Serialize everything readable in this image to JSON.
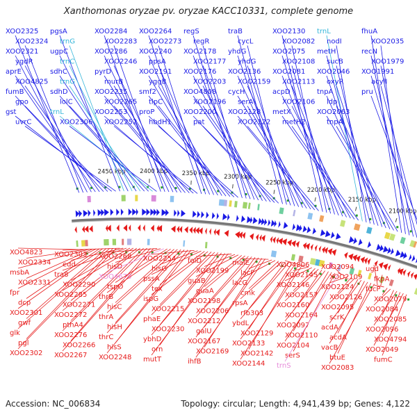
{
  "title": "Xanthomonas oryzae pv. oryzae KACC10331, complete genome",
  "accession_label": "Accession: NC_006834",
  "summary_label": "Topology: circular; Length: 4,941,439 bp; Genes: 4,122",
  "colors": {
    "forward": "#1a1ae6",
    "reverse": "#e61a1a",
    "rna": "#33b5d9",
    "rna_reverse": "#e68ad9",
    "backbone": "#777777"
  },
  "ticks": [
    "2100 kbp",
    "2150 kbp",
    "2200 kbp",
    "2250 kbp",
    "2300 kbp",
    "2350 kbp",
    "2400 kbp",
    "2450 kbp"
  ],
  "forward_labels": [
    "XOO2325",
    "XOO2324",
    "XOO2321",
    "ygdR",
    "aprE",
    "XOO4825",
    "fumB",
    "gpo",
    "gst",
    "uvrC",
    "pgsA",
    "trnG",
    "ugpC",
    "trnC",
    "sdhC",
    "trnG",
    "sdhD",
    "lolC",
    "trnL",
    "XOO2306",
    "XOO2284",
    "XOO2283",
    "XOO2286",
    "XOO2246",
    "pyrD",
    "murB",
    "XOO2235",
    "XOO2265",
    "XOO2253",
    "XOO2252",
    "XOO2264",
    "XOO2273",
    "XOO2240",
    "ppsA",
    "XOO2191",
    "yggB",
    "smf2",
    "tlpC",
    "proP",
    "hbdH1",
    "regS",
    "regR",
    "XOO2178",
    "XOO2177",
    "XOO2176",
    "XOO2203",
    "XOO4808",
    "XOO2196",
    "XOO2200",
    "pat",
    "traB",
    "cycL",
    "yhdG",
    "yhdG",
    "XOO2136",
    "XOO2159",
    "cycH",
    "serA",
    "XOO2128",
    "XOO2122",
    "XOO2130",
    "XOO2082",
    "XOO2075",
    "XOO2108",
    "XOO2081",
    "XOO2113",
    "acpD",
    "XOO2106",
    "metX",
    "metH2",
    "trnL",
    "nodI",
    "metH",
    "sucB",
    "XOO2046",
    "oxyR",
    "tnpA",
    "ldp",
    "XOO2063",
    "tnpA",
    "fhuA",
    "XOO2035",
    "recN",
    "XOO1979",
    "XOO1991",
    "acylI",
    "pru"
  ],
  "reverse_labels": [
    "XOO4823",
    "XOO2334",
    "msbA",
    "XOO2331",
    "fpr",
    "dcp",
    "XOO2301",
    "gwf",
    "glk",
    "pgl",
    "XOO2302",
    "XOO2303",
    "edd",
    "tra8",
    "XOO2290",
    "XOO2285",
    "XOO2271",
    "XOO2272",
    "pthA4",
    "XOO2276",
    "XOO2266",
    "XOO2267",
    "XOO2268",
    "hisD",
    "XOO4670",
    "tspO",
    "thrB",
    "hisC",
    "thrA",
    "hisH",
    "thrC",
    "hisS",
    "XOO2248",
    "XOO2254",
    "hisG",
    "pssA",
    "tex",
    "ispG",
    "XOO2215",
    "phaE",
    "XOO2230",
    "ybhD",
    "orn",
    "mutT",
    "folD",
    "XOO2199",
    "guaB",
    "guaA",
    "XOO2198",
    "XOO2206",
    "XOO2212",
    "galU",
    "XOO2167",
    "XOO2169",
    "ihfB",
    "malE",
    "lacF",
    "lacG",
    "cmk",
    "rpsA",
    "rfb303",
    "ybdL",
    "XOO2129",
    "XOO2133",
    "XOO2142",
    "XOO2144",
    "XOO4806",
    "XOO2145",
    "XOO2146",
    "XOO2157",
    "XOO2160",
    "XOO2164",
    "XOO2097",
    "XOO2110",
    "XOO2104",
    "serS",
    "trnS",
    "XOO2094",
    "XOO2109",
    "XOO2124",
    "XOO2126",
    "XOO2095",
    "scrK",
    "acdA",
    "acdA",
    "vacB",
    "btuE",
    "XOO2083",
    "ugd",
    "fkpA",
    "fucP",
    "XOO2079",
    "XOO2084",
    "XOO2085",
    "XOO2096",
    "XOO4794",
    "XOO2049",
    "fumC"
  ]
}
